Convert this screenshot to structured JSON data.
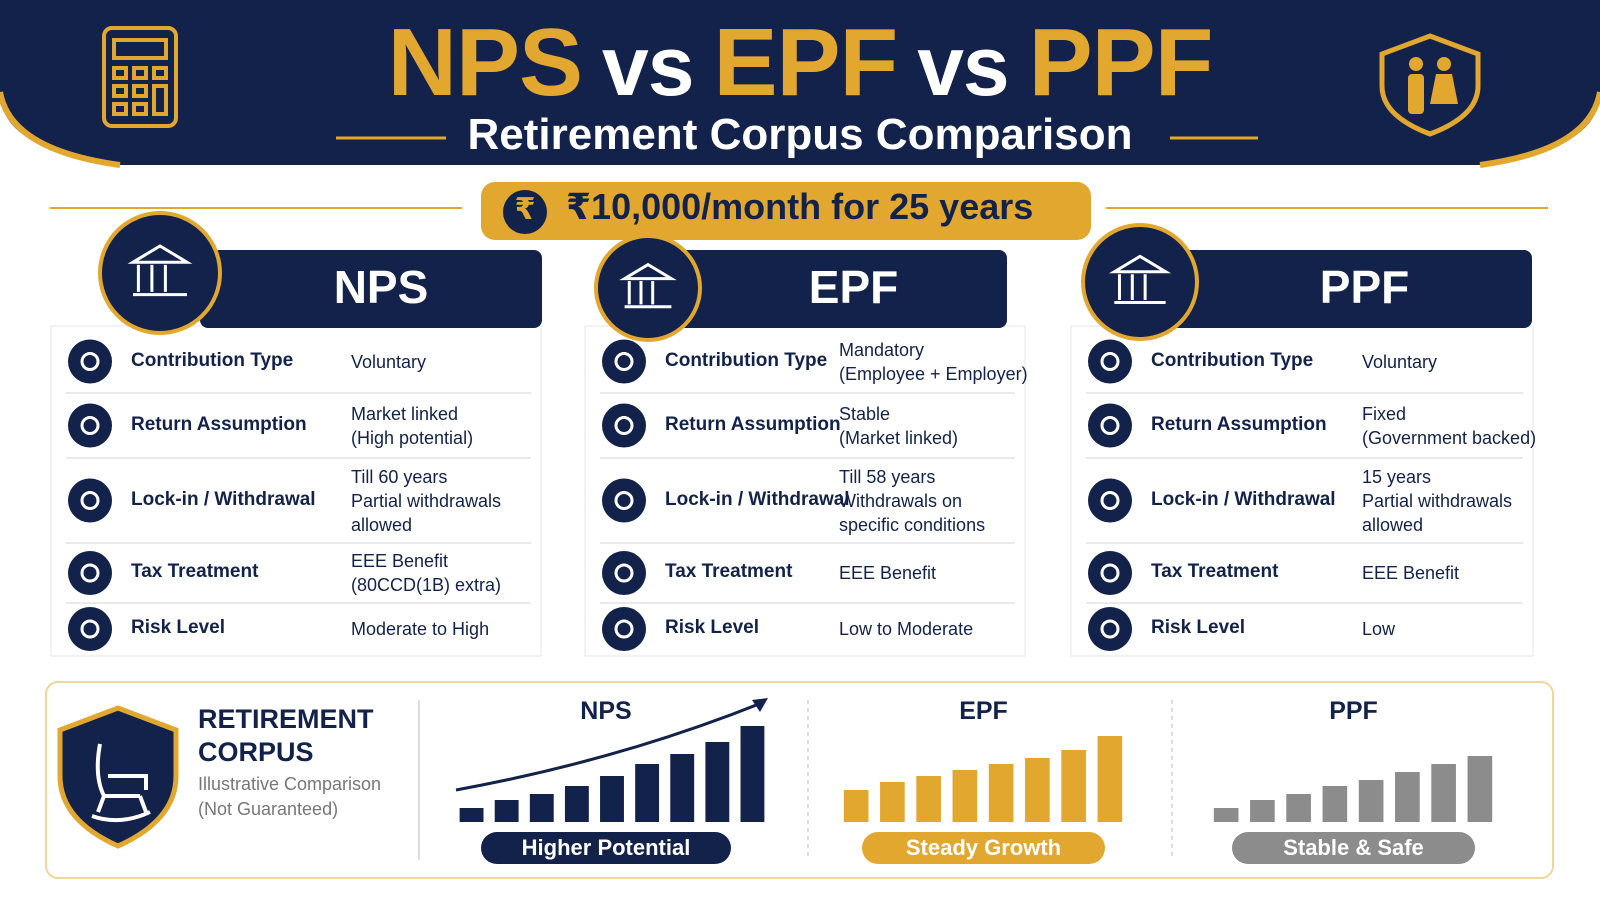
{
  "header": {
    "title": [
      "NPS",
      "vs",
      "EPF",
      "vs",
      "PPF"
    ],
    "subtitle": "Retirement Corpus Comparison"
  },
  "badge": {
    "icon": "₹",
    "text": "₹10,000/month for 25 years"
  },
  "columns": [
    {
      "name": "NPS",
      "rows": [
        {
          "label": "Contribution Type",
          "value": [
            "Voluntary"
          ]
        },
        {
          "label": "Return Assumption",
          "value": [
            "Market linked",
            "(High potential)"
          ]
        },
        {
          "label": "Lock-in / Withdrawal",
          "value": [
            "Till 60 years",
            "Partial withdrawals",
            "allowed"
          ]
        },
        {
          "label": "Tax Treatment",
          "value": [
            "EEE Benefit",
            "(80CCD(1B) extra)"
          ]
        },
        {
          "label": "Risk Level",
          "value": [
            "Moderate to High"
          ]
        }
      ]
    },
    {
      "name": "EPF",
      "rows": [
        {
          "label": "Contribution Type",
          "value": [
            "Mandatory",
            "(Employee + Employer)"
          ]
        },
        {
          "label": "Return Assumption",
          "value": [
            "Stable",
            "(Market linked)"
          ]
        },
        {
          "label": "Lock-in / Withdrawal",
          "value": [
            "Till 58 years",
            "Withdrawals on",
            "specific conditions"
          ]
        },
        {
          "label": "Tax Treatment",
          "value": [
            "EEE Benefit"
          ]
        },
        {
          "label": "Risk Level",
          "value": [
            "Low to Moderate"
          ]
        }
      ]
    },
    {
      "name": "PPF",
      "rows": [
        {
          "label": "Contribution Type",
          "value": [
            "Voluntary"
          ]
        },
        {
          "label": "Return Assumption",
          "value": [
            "Fixed",
            "(Government backed)"
          ]
        },
        {
          "label": "Lock-in / Withdrawal",
          "value": [
            "15 years",
            "Partial withdrawals",
            "allowed"
          ]
        },
        {
          "label": "Tax Treatment",
          "value": [
            "EEE Benefit"
          ]
        },
        {
          "label": "Risk Level",
          "value": [
            "Low"
          ]
        }
      ]
    }
  ],
  "corpus": {
    "title": [
      "RETIREMENT",
      "CORPUS"
    ],
    "note": [
      "Illustrative Comparison",
      "(Not Guaranteed)"
    ],
    "charts": [
      {
        "name": "NPS",
        "bars": [
          14,
          22,
          28,
          36,
          46,
          58,
          68,
          80,
          96
        ],
        "label": "Higher Potential",
        "color": "#13224a"
      },
      {
        "name": "EPF",
        "bars": [
          32,
          40,
          46,
          52,
          58,
          64,
          72,
          86
        ],
        "label": "Steady Growth",
        "color": "#e2a72e"
      },
      {
        "name": "PPF",
        "bars": [
          14,
          22,
          28,
          36,
          42,
          50,
          58,
          66
        ],
        "label": "Stable & Safe",
        "color": "#8c8c8c"
      }
    ]
  }
}
